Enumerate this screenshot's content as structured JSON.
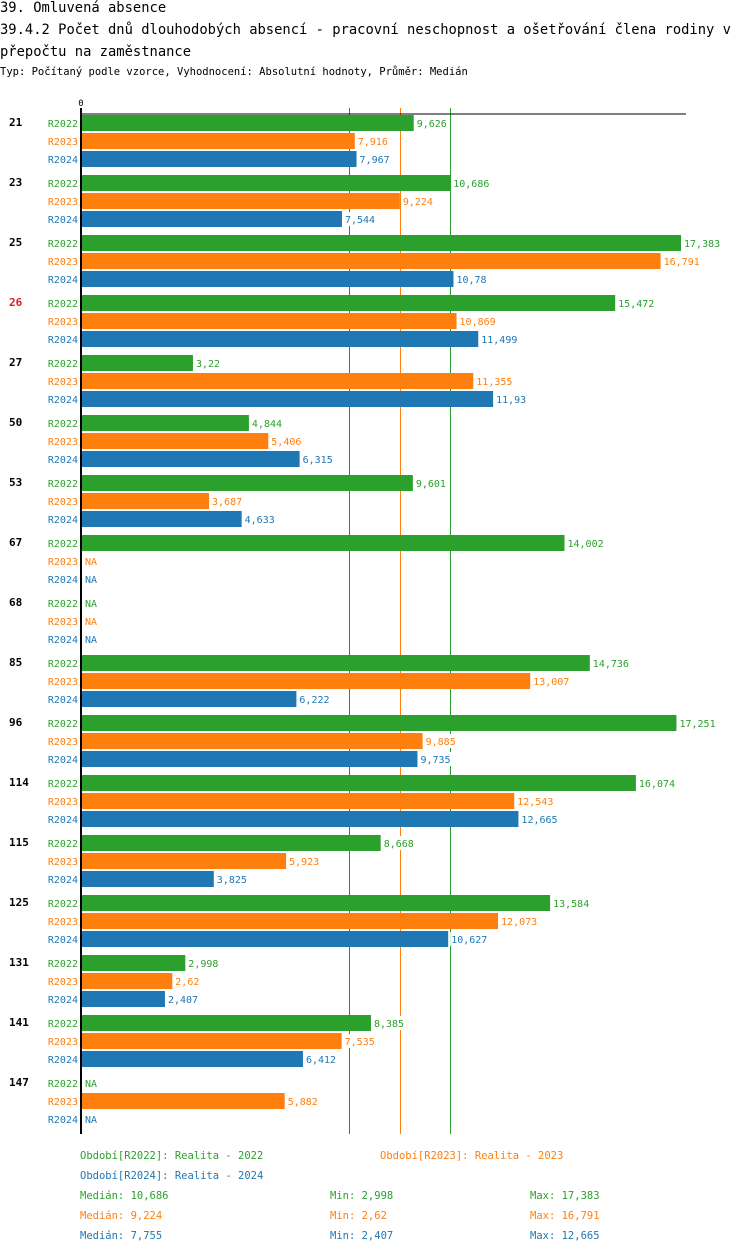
{
  "header": {
    "section_title": "39. Omluvená absence",
    "chart_title": "39.4.2 Počet dnů dlouhodobých absencí - pracovní neschopnost a ošetřování člena rodiny v přepočtu na zaměstnance",
    "subtitle": "Typ: Počítaný podle vzorce, Vyhodnocení: Absolutní hodnoty, Průměr: Medián"
  },
  "colors": {
    "R2022": "#2ca02c",
    "R2023": "#ff7f0e",
    "R2024": "#1f77b4",
    "highlight_category": "#e31a1c",
    "axis": "#000000"
  },
  "chart_data": {
    "type": "bar",
    "orientation": "horizontal",
    "title": "39.4.2 Počet dnů dlouhodobých absencí - pracovní neschopnost a ošetřování člena rodiny v přepočtu na zaměstnance",
    "xlabel": "",
    "ylabel": "",
    "x_tick_labels": [
      "0"
    ],
    "xlim": [
      0,
      17.5
    ],
    "grid": false,
    "decimal_separator": ",",
    "highlighted_category": "26",
    "categories": [
      "21",
      "23",
      "25",
      "26",
      "27",
      "50",
      "53",
      "67",
      "68",
      "85",
      "96",
      "114",
      "115",
      "125",
      "131",
      "141",
      "147"
    ],
    "series": [
      {
        "name": "R2022",
        "values": [
          9.626,
          10.686,
          17.383,
          15.472,
          3.22,
          4.844,
          9.601,
          14.002,
          null,
          14.736,
          17.251,
          16.074,
          8.668,
          13.584,
          2.998,
          8.385,
          null
        ],
        "labels": [
          "9,626",
          "10,686",
          "17,383",
          "15,472",
          "3,22",
          "4,844",
          "9,601",
          "14,002",
          "NA",
          "14,736",
          "17,251",
          "16,074",
          "8,668",
          "13,584",
          "2,998",
          "8,385",
          "NA"
        ]
      },
      {
        "name": "R2023",
        "values": [
          7.916,
          9.224,
          16.791,
          10.869,
          11.355,
          5.406,
          3.687,
          null,
          null,
          13.007,
          9.885,
          12.543,
          5.923,
          12.073,
          2.62,
          7.535,
          5.882
        ],
        "labels": [
          "7,916",
          "9,224",
          "16,791",
          "10,869",
          "11,355",
          "5,406",
          "3,687",
          "NA",
          "NA",
          "13,007",
          "9,885",
          "12,543",
          "5,923",
          "12,073",
          "2,62",
          "7,535",
          "5,882"
        ]
      },
      {
        "name": "R2024",
        "values": [
          7.967,
          7.544,
          10.78,
          11.499,
          11.93,
          6.315,
          4.633,
          null,
          null,
          6.222,
          9.735,
          12.665,
          3.825,
          10.627,
          2.407,
          6.412,
          null
        ],
        "labels": [
          "7,967",
          "7,544",
          "10,78",
          "11,499",
          "11,93",
          "6,315",
          "4,633",
          "NA",
          "NA",
          "6,222",
          "9,735",
          "12,665",
          "3,825",
          "10,627",
          "2,407",
          "6,412",
          "NA"
        ]
      }
    ],
    "reference_lines": [
      {
        "series": "R2022",
        "type": "median",
        "value": 10.686
      },
      {
        "series": "R2023",
        "type": "median",
        "value": 9.224
      },
      {
        "series": "R2024",
        "type": "median",
        "value": 7.755
      }
    ],
    "legend": {
      "placement": "bottom",
      "entries": [
        {
          "series": "R2022",
          "text": "Období[R2022]: Realita - 2022"
        },
        {
          "series": "R2023",
          "text": "Období[R2023]: Realita - 2023"
        },
        {
          "series": "R2024",
          "text": "Období[R2024]: Realita - 2024"
        }
      ]
    },
    "stats": [
      {
        "series": "R2022",
        "median": "Medián: 10,686",
        "min": "Min: 2,998",
        "max": "Max: 17,383"
      },
      {
        "series": "R2023",
        "median": "Medián: 9,224",
        "min": "Min: 2,62",
        "max": "Max: 16,791"
      },
      {
        "series": "R2024",
        "median": "Medián: 7,755",
        "min": "Min: 2,407",
        "max": "Max: 12,665"
      }
    ]
  }
}
